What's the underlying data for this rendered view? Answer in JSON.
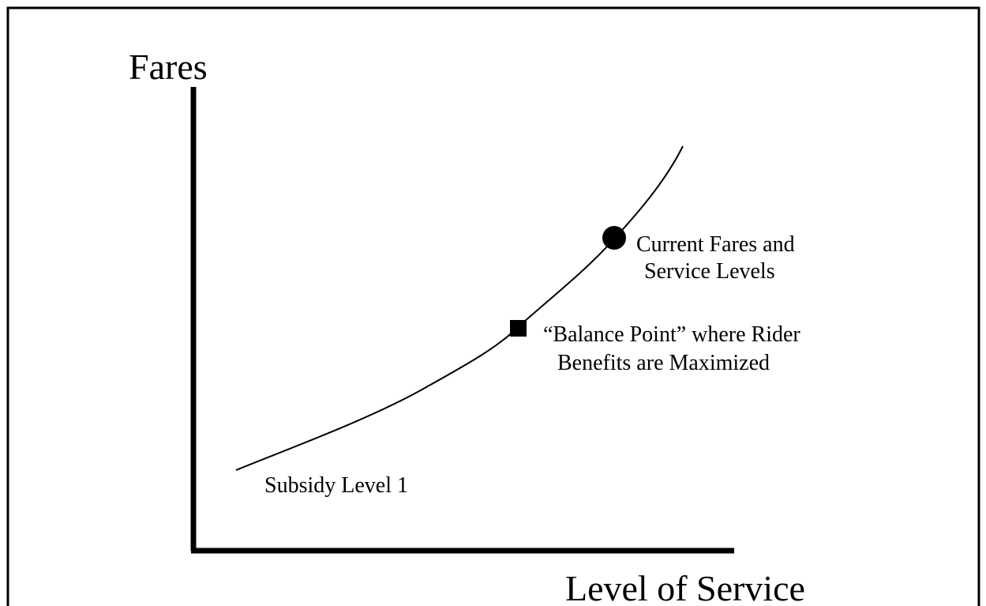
{
  "axes": {
    "y_label": "Fares",
    "x_label": "Level of Service"
  },
  "curve": {
    "label": "Subsidy Level 1"
  },
  "points": [
    {
      "lines": [
        "Current Fares and",
        "Service Levels"
      ]
    },
    {
      "lines": [
        "“Balance Point” where Rider",
        "Benefits are Maximized"
      ]
    }
  ]
}
